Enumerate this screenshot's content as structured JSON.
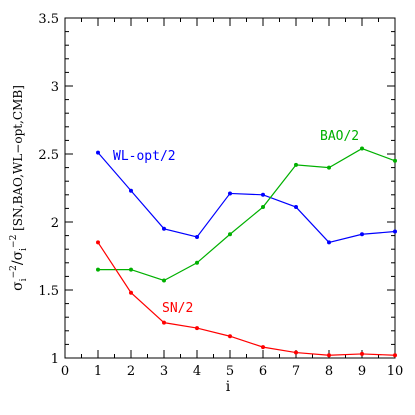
{
  "chart_data": {
    "type": "line",
    "xlabel": "i",
    "ylabel_parts": [
      "σ",
      "i",
      "−2",
      "/σ",
      "i",
      "−2",
      " [SN,BAO,WL−opt,CMB]"
    ],
    "xlim": [
      0,
      10
    ],
    "ylim": [
      1,
      3.5
    ],
    "x_ticks": [
      0,
      1,
      2,
      3,
      4,
      5,
      6,
      7,
      8,
      9,
      10
    ],
    "y_ticks": [
      1,
      1.5,
      2,
      2.5,
      3,
      3.5
    ],
    "y_tick_labels": [
      "1",
      "1.5",
      "2",
      "2.5",
      "3",
      "3.5"
    ],
    "grid": false,
    "series": [
      {
        "name": "WL-opt/2",
        "color": "#0000ff",
        "x": [
          1,
          2,
          3,
          4,
          5,
          6,
          7,
          8,
          9,
          10
        ],
        "values": [
          2.51,
          2.23,
          1.95,
          1.89,
          2.21,
          2.2,
          2.11,
          1.85,
          1.91,
          1.93
        ]
      },
      {
        "name": "BAO/2",
        "color": "#00b000",
        "x": [
          1,
          2,
          3,
          4,
          5,
          6,
          7,
          8,
          9,
          10
        ],
        "values": [
          1.65,
          1.65,
          1.57,
          1.7,
          1.91,
          2.11,
          2.42,
          2.4,
          2.54,
          2.45
        ]
      },
      {
        "name": "SN/2",
        "color": "#ff0000",
        "x": [
          1,
          2,
          3,
          4,
          5,
          6,
          7,
          8,
          9,
          10
        ],
        "values": [
          1.85,
          1.48,
          1.26,
          1.22,
          1.16,
          1.08,
          1.04,
          1.02,
          1.03,
          1.02
        ]
      }
    ]
  }
}
